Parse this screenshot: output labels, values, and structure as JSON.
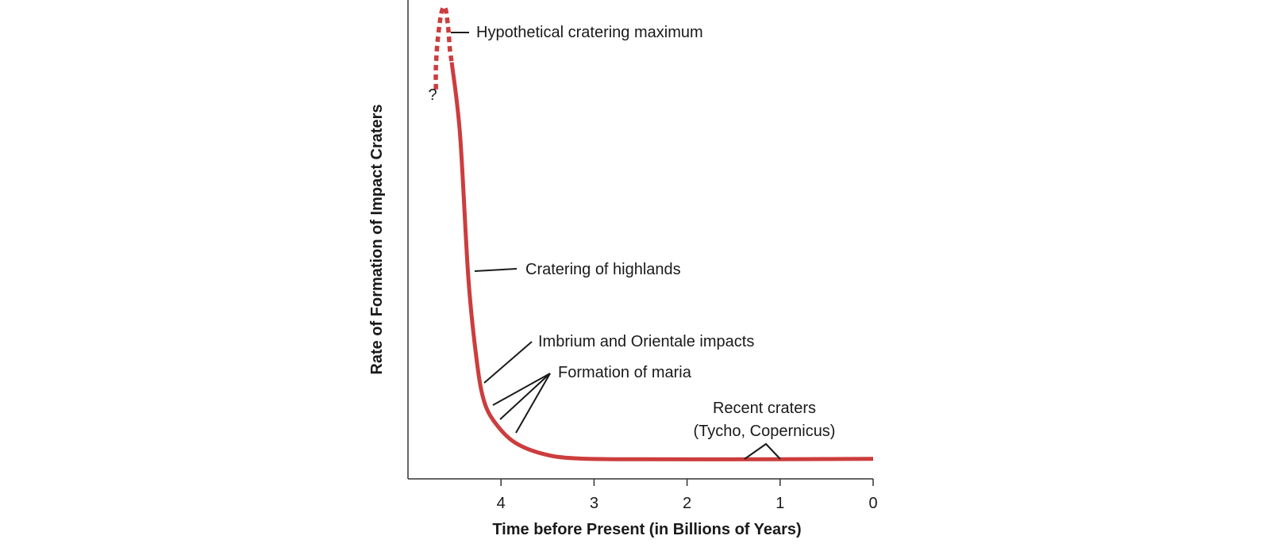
{
  "chart_data": {
    "type": "line",
    "title": "",
    "xlabel": "Time before Present (in Billions of Years)",
    "ylabel": "Rate of Formation of Impact Craters",
    "xlim": [
      5.0,
      0
    ],
    "x_ticks": [
      4,
      3,
      2,
      1,
      0
    ],
    "x_tick_labels": [
      "4",
      "3",
      "2",
      "1",
      "0"
    ],
    "y_ticks_shown": false,
    "grid": false,
    "series": [
      {
        "style": "dotted",
        "color": "#cc3d3d",
        "points": [
          [
            4.7,
            0.82
          ],
          [
            4.7,
            0.87
          ],
          [
            4.68,
            0.93
          ],
          [
            4.64,
            0.99
          ],
          [
            4.6,
            1.0
          ],
          [
            4.57,
            0.96
          ],
          [
            4.55,
            0.91
          ],
          [
            4.53,
            0.88
          ]
        ]
      },
      {
        "style": "solid",
        "color": "#cc3d3d",
        "points": [
          [
            4.53,
            0.88
          ],
          [
            4.44,
            0.72
          ],
          [
            4.35,
            0.4
          ],
          [
            4.26,
            0.22
          ],
          [
            4.18,
            0.13
          ],
          [
            4.05,
            0.08
          ],
          [
            3.85,
            0.04
          ],
          [
            3.55,
            0.015
          ],
          [
            3.2,
            0.005
          ],
          [
            2.5,
            0.003
          ],
          [
            1.0,
            0.003
          ],
          [
            0,
            0.004
          ]
        ]
      }
    ],
    "unknown_marker": "?",
    "annotations": [
      {
        "id": "max",
        "text": "Hypothetical cratering maximum"
      },
      {
        "id": "highlands",
        "text": "Cratering of highlands"
      },
      {
        "id": "imbrium",
        "text": "Imbrium and Orientale impacts"
      },
      {
        "id": "maria",
        "text": "Formation of maria"
      },
      {
        "id": "recent1",
        "text": "Recent craters"
      },
      {
        "id": "recent2",
        "text": "(Tycho, Copernicus)"
      }
    ]
  }
}
